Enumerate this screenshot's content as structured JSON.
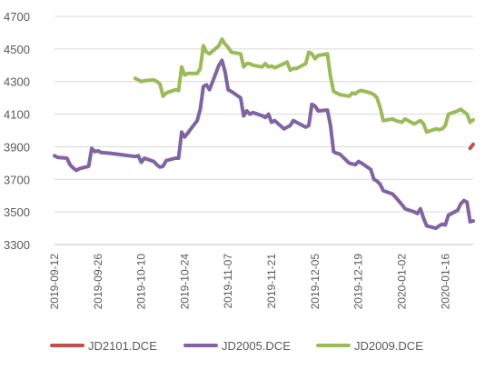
{
  "chart_data": {
    "type": "line",
    "title": "",
    "xlabel": "",
    "ylabel": "",
    "ylim": [
      3300,
      4700
    ],
    "yticks": [
      3300,
      3500,
      3700,
      3900,
      4100,
      4300,
      4500,
      4700
    ],
    "xlim": [
      "2019-09-12",
      "2020-01-25"
    ],
    "xticks": [
      "2019-09-12",
      "2019-09-26",
      "2019-10-10",
      "2019-10-24",
      "2019-11-07",
      "2019-11-21",
      "2019-12-05",
      "2019-12-19",
      "2020-01-02",
      "2020-01-16"
    ],
    "grid": true,
    "legend_position": "bottom",
    "series": [
      {
        "name": "JD2101.DCE",
        "color": "#c0504d",
        "points": [
          [
            "2020-01-24",
            3890
          ],
          [
            "2020-01-25",
            3915
          ]
        ]
      },
      {
        "name": "JD2005.DCE",
        "color": "#8064a2",
        "points": [
          [
            "2019-09-12",
            3845
          ],
          [
            "2019-09-13",
            3835
          ],
          [
            "2019-09-16",
            3830
          ],
          [
            "2019-09-17",
            3790
          ],
          [
            "2019-09-18",
            3770
          ],
          [
            "2019-09-19",
            3755
          ],
          [
            "2019-09-20",
            3765
          ],
          [
            "2019-09-23",
            3780
          ],
          [
            "2019-09-24",
            3890
          ],
          [
            "2019-09-25",
            3870
          ],
          [
            "2019-09-26",
            3875
          ],
          [
            "2019-09-27",
            3865
          ],
          [
            "2019-09-30",
            3860
          ],
          [
            "2019-10-08",
            3840
          ],
          [
            "2019-10-09",
            3845
          ],
          [
            "2019-10-10",
            3805
          ],
          [
            "2019-10-11",
            3830
          ],
          [
            "2019-10-14",
            3810
          ],
          [
            "2019-10-15",
            3790
          ],
          [
            "2019-10-16",
            3775
          ],
          [
            "2019-10-17",
            3780
          ],
          [
            "2019-10-18",
            3815
          ],
          [
            "2019-10-21",
            3830
          ],
          [
            "2019-10-22",
            3830
          ],
          [
            "2019-10-23",
            3990
          ],
          [
            "2019-10-24",
            3960
          ],
          [
            "2019-10-25",
            3985
          ],
          [
            "2019-10-28",
            4060
          ],
          [
            "2019-10-29",
            4130
          ],
          [
            "2019-10-30",
            4270
          ],
          [
            "2019-10-31",
            4280
          ],
          [
            "2019-11-01",
            4250
          ],
          [
            "2019-11-04",
            4400
          ],
          [
            "2019-11-05",
            4430
          ],
          [
            "2019-11-06",
            4360
          ],
          [
            "2019-11-07",
            4250
          ],
          [
            "2019-11-08",
            4240
          ],
          [
            "2019-11-11",
            4200
          ],
          [
            "2019-11-12",
            4090
          ],
          [
            "2019-11-13",
            4120
          ],
          [
            "2019-11-14",
            4100
          ],
          [
            "2019-11-15",
            4110
          ],
          [
            "2019-11-18",
            4090
          ],
          [
            "2019-11-19",
            4080
          ],
          [
            "2019-11-20",
            4100
          ],
          [
            "2019-11-21",
            4050
          ],
          [
            "2019-11-22",
            4060
          ],
          [
            "2019-11-25",
            4010
          ],
          [
            "2019-11-26",
            4020
          ],
          [
            "2019-11-27",
            4030
          ],
          [
            "2019-11-28",
            4060
          ],
          [
            "2019-11-29",
            4050
          ],
          [
            "2019-12-02",
            4020
          ],
          [
            "2019-12-03",
            4030
          ],
          [
            "2019-12-04",
            4160
          ],
          [
            "2019-12-05",
            4150
          ],
          [
            "2019-12-06",
            4120
          ],
          [
            "2019-12-09",
            4125
          ],
          [
            "2019-12-10",
            4030
          ],
          [
            "2019-12-11",
            3870
          ],
          [
            "2019-12-12",
            3860
          ],
          [
            "2019-12-13",
            3855
          ],
          [
            "2019-12-16",
            3800
          ],
          [
            "2019-12-17",
            3795
          ],
          [
            "2019-12-18",
            3790
          ],
          [
            "2019-12-19",
            3810
          ],
          [
            "2019-12-20",
            3800
          ],
          [
            "2019-12-23",
            3760
          ],
          [
            "2019-12-24",
            3700
          ],
          [
            "2019-12-25",
            3690
          ],
          [
            "2019-12-26",
            3670
          ],
          [
            "2019-12-27",
            3630
          ],
          [
            "2019-12-30",
            3610
          ],
          [
            "2019-12-31",
            3590
          ],
          [
            "2020-01-02",
            3545
          ],
          [
            "2020-01-03",
            3520
          ],
          [
            "2020-01-06",
            3500
          ],
          [
            "2020-01-07",
            3490
          ],
          [
            "2020-01-08",
            3520
          ],
          [
            "2020-01-09",
            3460
          ],
          [
            "2020-01-10",
            3415
          ],
          [
            "2020-01-13",
            3400
          ],
          [
            "2020-01-14",
            3415
          ],
          [
            "2020-01-15",
            3425
          ],
          [
            "2020-01-16",
            3420
          ],
          [
            "2020-01-17",
            3480
          ],
          [
            "2020-01-20",
            3510
          ],
          [
            "2020-01-21",
            3550
          ],
          [
            "2020-01-22",
            3570
          ],
          [
            "2020-01-23",
            3560
          ],
          [
            "2020-01-24",
            3440
          ],
          [
            "2020-01-25",
            3445
          ]
        ]
      },
      {
        "name": "JD2009.DCE",
        "color": "#9bbb59",
        "points": [
          [
            "2019-10-08",
            4320
          ],
          [
            "2019-10-09",
            4310
          ],
          [
            "2019-10-10",
            4300
          ],
          [
            "2019-10-11",
            4305
          ],
          [
            "2019-10-14",
            4310
          ],
          [
            "2019-10-15",
            4300
          ],
          [
            "2019-10-16",
            4285
          ],
          [
            "2019-10-17",
            4210
          ],
          [
            "2019-10-18",
            4230
          ],
          [
            "2019-10-21",
            4250
          ],
          [
            "2019-10-22",
            4245
          ],
          [
            "2019-10-23",
            4390
          ],
          [
            "2019-10-24",
            4340
          ],
          [
            "2019-10-25",
            4350
          ],
          [
            "2019-10-28",
            4350
          ],
          [
            "2019-10-29",
            4380
          ],
          [
            "2019-10-30",
            4520
          ],
          [
            "2019-10-31",
            4480
          ],
          [
            "2019-11-01",
            4470
          ],
          [
            "2019-11-04",
            4520
          ],
          [
            "2019-11-05",
            4560
          ],
          [
            "2019-11-06",
            4530
          ],
          [
            "2019-11-07",
            4510
          ],
          [
            "2019-11-08",
            4480
          ],
          [
            "2019-11-11",
            4470
          ],
          [
            "2019-11-12",
            4390
          ],
          [
            "2019-11-13",
            4410
          ],
          [
            "2019-11-14",
            4410
          ],
          [
            "2019-11-15",
            4400
          ],
          [
            "2019-11-18",
            4390
          ],
          [
            "2019-11-19",
            4410
          ],
          [
            "2019-11-20",
            4390
          ],
          [
            "2019-11-21",
            4395
          ],
          [
            "2019-11-22",
            4385
          ],
          [
            "2019-11-25",
            4410
          ],
          [
            "2019-11-26",
            4420
          ],
          [
            "2019-11-27",
            4370
          ],
          [
            "2019-11-28",
            4380
          ],
          [
            "2019-11-29",
            4380
          ],
          [
            "2019-12-02",
            4410
          ],
          [
            "2019-12-03",
            4480
          ],
          [
            "2019-12-04",
            4470
          ],
          [
            "2019-12-05",
            4440
          ],
          [
            "2019-12-06",
            4460
          ],
          [
            "2019-12-09",
            4470
          ],
          [
            "2019-12-10",
            4330
          ],
          [
            "2019-12-11",
            4240
          ],
          [
            "2019-12-12",
            4230
          ],
          [
            "2019-12-13",
            4220
          ],
          [
            "2019-12-16",
            4210
          ],
          [
            "2019-12-17",
            4230
          ],
          [
            "2019-12-18",
            4225
          ],
          [
            "2019-12-19",
            4240
          ],
          [
            "2019-12-20",
            4245
          ],
          [
            "2019-12-23",
            4230
          ],
          [
            "2019-12-24",
            4220
          ],
          [
            "2019-12-25",
            4200
          ],
          [
            "2019-12-26",
            4140
          ],
          [
            "2019-12-27",
            4060
          ],
          [
            "2019-12-30",
            4070
          ],
          [
            "2019-12-31",
            4060
          ],
          [
            "2020-01-02",
            4050
          ],
          [
            "2020-01-03",
            4070
          ],
          [
            "2020-01-06",
            4040
          ],
          [
            "2020-01-07",
            4050
          ],
          [
            "2020-01-08",
            4060
          ],
          [
            "2020-01-09",
            4040
          ],
          [
            "2020-01-10",
            3990
          ],
          [
            "2020-01-13",
            4010
          ],
          [
            "2020-01-14",
            4005
          ],
          [
            "2020-01-15",
            4010
          ],
          [
            "2020-01-16",
            4030
          ],
          [
            "2020-01-17",
            4100
          ],
          [
            "2020-01-20",
            4120
          ],
          [
            "2020-01-21",
            4130
          ],
          [
            "2020-01-22",
            4115
          ],
          [
            "2020-01-23",
            4100
          ],
          [
            "2020-01-24",
            4050
          ],
          [
            "2020-01-25",
            4065
          ]
        ]
      }
    ]
  }
}
